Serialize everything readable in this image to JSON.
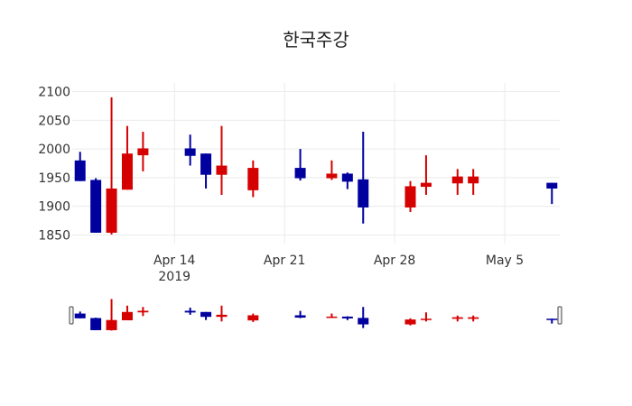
{
  "title": "한국주강",
  "colors": {
    "increasing": "#D50000",
    "decreasing": "#00009F",
    "grid": "#EBEBEB",
    "rangeslider_handle": "#444444"
  },
  "chart_data": {
    "type": "candlestick",
    "title": "한국주강",
    "xlabel": "",
    "ylabel": "",
    "ylim": [
      1835,
      2115
    ],
    "yticks": [
      1850,
      1900,
      1950,
      2000,
      2050,
      2100
    ],
    "xrange": [
      "2019-04-07T12:00",
      "2019-05-08T12:00"
    ],
    "xticks": [
      {
        "date": "2019-04-14",
        "label": "Apr 14",
        "sublabel": "2019"
      },
      {
        "date": "2019-04-21",
        "label": "Apr 21",
        "sublabel": ""
      },
      {
        "date": "2019-04-28",
        "label": "Apr 28",
        "sublabel": ""
      },
      {
        "date": "2019-05-05",
        "label": "May 5",
        "sublabel": ""
      }
    ],
    "grid": true,
    "legend": false,
    "rangeslider": true,
    "increasing_color": "#D50000",
    "decreasing_color": "#00009F",
    "series": [
      {
        "date": "2019-04-08",
        "open": 1980,
        "high": 1995,
        "low": 1944,
        "close": 1944
      },
      {
        "date": "2019-04-09",
        "open": 1946,
        "high": 1949,
        "low": 1854,
        "close": 1854
      },
      {
        "date": "2019-04-10",
        "open": 1854,
        "high": 2090,
        "low": 1851,
        "close": 1931
      },
      {
        "date": "2019-04-11",
        "open": 1929,
        "high": 2040,
        "low": 1929,
        "close": 1992
      },
      {
        "date": "2019-04-12",
        "open": 1989,
        "high": 2030,
        "low": 1961,
        "close": 2001
      },
      {
        "date": "2019-04-15",
        "open": 2001,
        "high": 2025,
        "low": 1971,
        "close": 1988
      },
      {
        "date": "2019-04-16",
        "open": 1992,
        "high": 1992,
        "low": 1931,
        "close": 1955
      },
      {
        "date": "2019-04-17",
        "open": 1955,
        "high": 2040,
        "low": 1920,
        "close": 1971
      },
      {
        "date": "2019-04-19",
        "open": 1928,
        "high": 1980,
        "low": 1916,
        "close": 1967
      },
      {
        "date": "2019-04-22",
        "open": 1967,
        "high": 2000,
        "low": 1945,
        "close": 1949
      },
      {
        "date": "2019-04-24",
        "open": 1949,
        "high": 1980,
        "low": 1946,
        "close": 1957
      },
      {
        "date": "2019-04-25",
        "open": 1957,
        "high": 1959,
        "low": 1930,
        "close": 1943
      },
      {
        "date": "2019-04-26",
        "open": 1947,
        "high": 2030,
        "low": 1870,
        "close": 1898
      },
      {
        "date": "2019-04-29",
        "open": 1898,
        "high": 1944,
        "low": 1890,
        "close": 1935
      },
      {
        "date": "2019-04-30",
        "open": 1934,
        "high": 1989,
        "low": 1920,
        "close": 1941
      },
      {
        "date": "2019-05-02",
        "open": 1940,
        "high": 1965,
        "low": 1920,
        "close": 1952
      },
      {
        "date": "2019-05-03",
        "open": 1940,
        "high": 1965,
        "low": 1920,
        "close": 1952
      },
      {
        "date": "2019-05-08",
        "open": 1941,
        "high": 1941,
        "low": 1904,
        "close": 1931
      }
    ]
  }
}
